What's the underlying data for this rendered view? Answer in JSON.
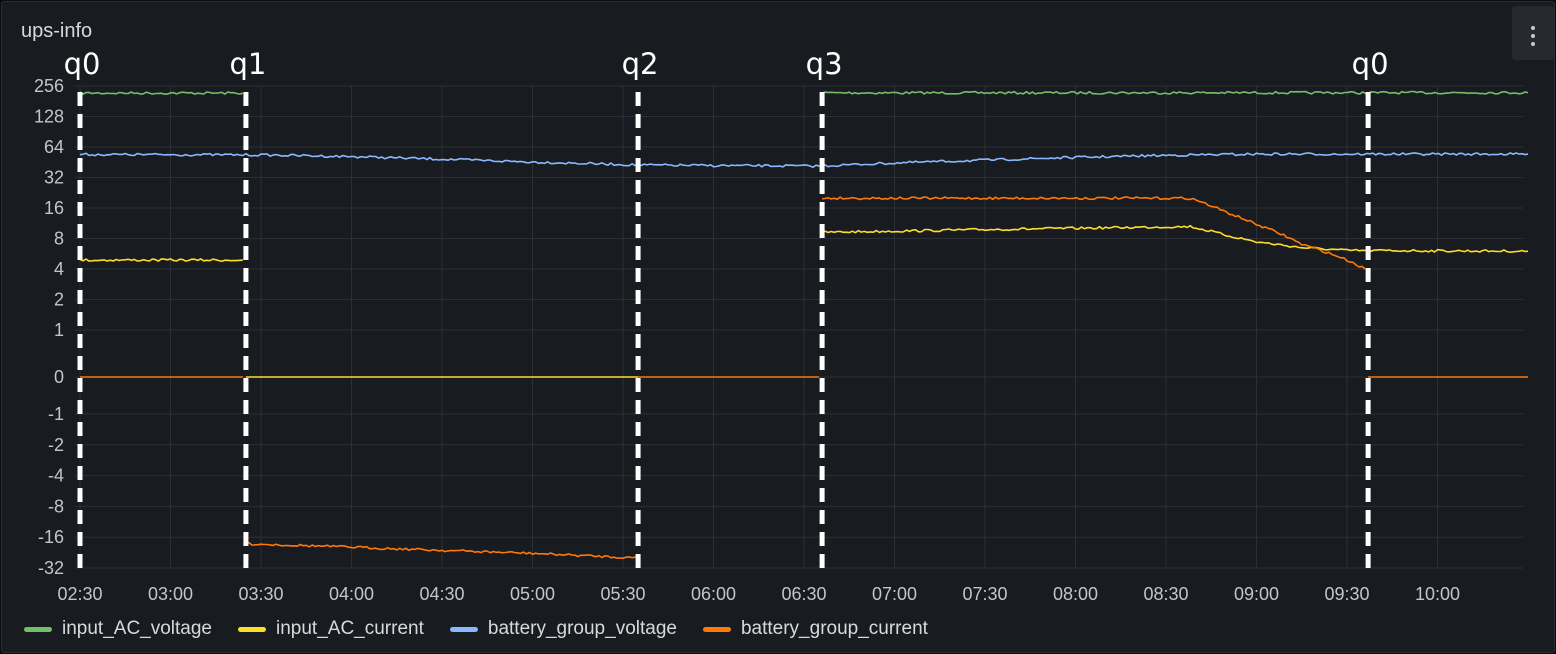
{
  "panel": {
    "title": "ups-info",
    "menu_icon": "vertical-dots-icon"
  },
  "chart_data": {
    "type": "line",
    "title": "ups-info",
    "y_scale": "symmetric-log2",
    "ylim": [
      -32,
      256
    ],
    "y_ticks": [
      256,
      128,
      64,
      32,
      16,
      8,
      4,
      2,
      1,
      0,
      -1,
      -2,
      -4,
      -8,
      -16,
      -32
    ],
    "x_ticks": [
      "02:30",
      "03:00",
      "03:30",
      "04:00",
      "04:30",
      "05:00",
      "05:30",
      "06:00",
      "06:30",
      "07:00",
      "07:30",
      "08:00",
      "08:30",
      "09:00",
      "09:30",
      "10:00"
    ],
    "xlim": [
      "02:30",
      "10:30"
    ],
    "grid": true,
    "legend_position": "bottom",
    "series": [
      {
        "name": "input_AC_voltage",
        "color": "#73bf69",
        "segments": [
          [
            [
              "02:30",
              218
            ],
            [
              "03:24",
              218
            ]
          ],
          [
            [
              "06:36",
              219
            ],
            [
              "10:30",
              220
            ]
          ]
        ]
      },
      {
        "name": "input_AC_current",
        "color": "#fade2a",
        "segments": [
          [
            [
              "02:30",
              4.9
            ],
            [
              "03:24",
              4.9
            ]
          ],
          [
            [
              "03:25",
              0
            ],
            [
              "05:35",
              0
            ]
          ],
          [
            [
              "06:36",
              9.2
            ],
            [
              "07:30",
              9.8
            ],
            [
              "08:00",
              10.1
            ],
            [
              "08:38",
              10.5
            ],
            [
              "08:50",
              8.6
            ],
            [
              "09:00",
              7.4
            ],
            [
              "09:15",
              6.5
            ],
            [
              "09:30",
              6.1
            ],
            [
              "10:30",
              6.0
            ]
          ]
        ]
      },
      {
        "name": "battery_group_voltage",
        "color": "#8ab8ff",
        "segments": [
          [
            [
              "02:30",
              54
            ],
            [
              "03:30",
              53.5
            ],
            [
              "04:00",
              51.5
            ],
            [
              "04:30",
              48.5
            ],
            [
              "05:00",
              45.5
            ],
            [
              "05:35",
              42.5
            ],
            [
              "06:00",
              42.0
            ],
            [
              "06:35",
              41.5
            ],
            [
              "07:00",
              44.5
            ],
            [
              "07:30",
              47.5
            ],
            [
              "08:00",
              50.5
            ],
            [
              "08:30",
              53.0
            ],
            [
              "09:00",
              54.5
            ],
            [
              "10:30",
              54.5
            ]
          ]
        ]
      },
      {
        "name": "battery_group_current",
        "color": "#ff780a",
        "segments": [
          [
            [
              "02:30",
              0
            ],
            [
              "03:24",
              0
            ]
          ],
          [
            [
              "03:25",
              -18.5
            ],
            [
              "04:00",
              -20
            ],
            [
              "04:30",
              -21.5
            ],
            [
              "05:00",
              -23
            ],
            [
              "05:35",
              -25.5
            ]
          ],
          [
            [
              "05:35",
              0
            ],
            [
              "06:35",
              0
            ]
          ],
          [
            [
              "06:36",
              20
            ],
            [
              "08:38",
              20
            ],
            [
              "08:50",
              14.5
            ],
            [
              "09:00",
              11
            ],
            [
              "09:15",
              7
            ],
            [
              "09:30",
              4.9
            ],
            [
              "09:36",
              4.0
            ]
          ],
          [
            [
              "09:37",
              0
            ],
            [
              "10:30",
              0
            ]
          ]
        ]
      }
    ],
    "annotations": [
      {
        "label": "q0",
        "time": "02:30"
      },
      {
        "label": "q1",
        "time": "03:25"
      },
      {
        "label": "q2",
        "time": "05:35"
      },
      {
        "label": "q3",
        "time": "06:36"
      },
      {
        "label": "q0",
        "time": "09:37"
      }
    ]
  }
}
